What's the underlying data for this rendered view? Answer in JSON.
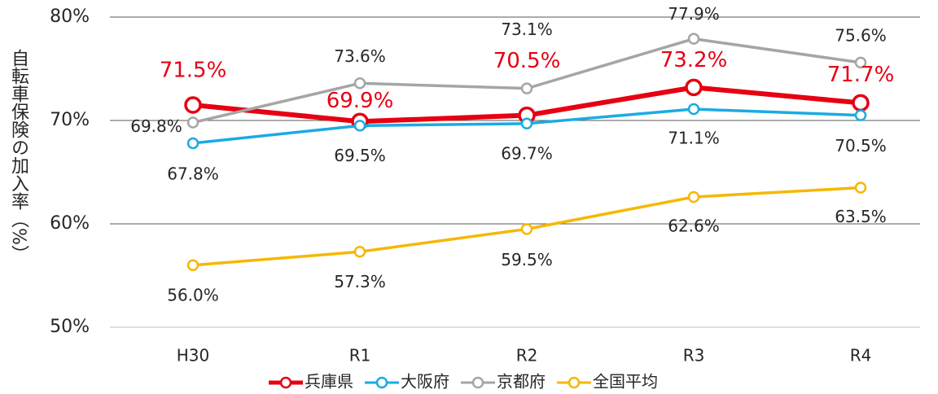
{
  "chart_data": {
    "type": "line",
    "y_label": "自転車保険の加入率（%）",
    "categories": [
      "H30",
      "R1",
      "R2",
      "R3",
      "R4"
    ],
    "ylim": [
      50,
      80
    ],
    "yticks": [
      {
        "value": 50,
        "label": "50%"
      },
      {
        "value": 60,
        "label": "60%"
      },
      {
        "value": 70,
        "label": "70%"
      },
      {
        "value": 80,
        "label": "80%"
      }
    ],
    "grid": true,
    "legend": "bottom",
    "series": [
      {
        "name": "兵庫県",
        "color": "#e60012",
        "values": [
          71.5,
          69.9,
          70.5,
          73.2,
          71.7
        ],
        "value_labels": [
          "71.5%",
          "69.9%",
          "70.5%",
          "73.2%",
          "71.7%"
        ]
      },
      {
        "name": "大阪府",
        "color": "#1aabe3",
        "values": [
          67.8,
          69.5,
          69.7,
          71.1,
          70.5
        ],
        "value_labels": [
          "67.8%",
          "69.5%",
          "69.7%",
          "71.1%",
          "70.5%"
        ]
      },
      {
        "name": "京都府",
        "color": "#a5a5a5",
        "values": [
          69.8,
          73.6,
          73.1,
          77.9,
          75.6
        ],
        "value_labels": [
          "69.8%",
          "73.6%",
          "73.1%",
          "77.9%",
          "75.6%"
        ]
      },
      {
        "name": "全国平均",
        "color": "#f5b800",
        "values": [
          56.0,
          57.3,
          59.5,
          62.6,
          63.5
        ],
        "value_labels": [
          "56.0%",
          "57.3%",
          "59.5%",
          "62.6%",
          "63.5%"
        ]
      }
    ]
  }
}
